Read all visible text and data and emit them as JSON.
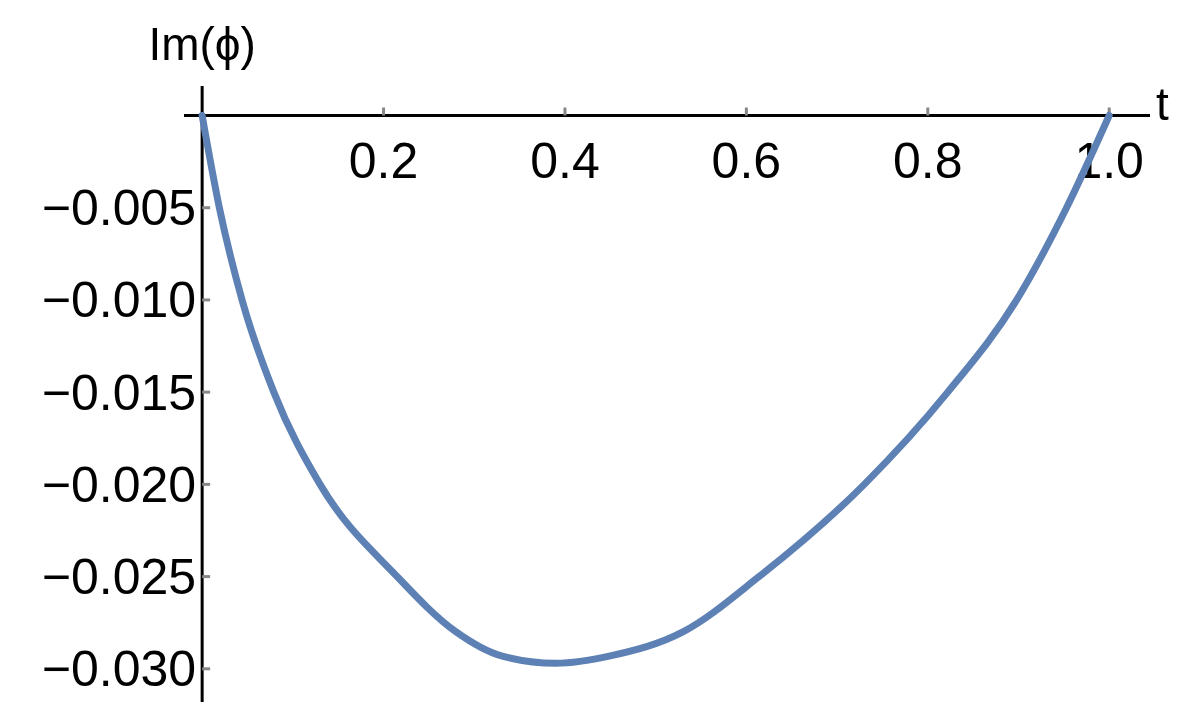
{
  "chart_data": {
    "type": "line",
    "xlabel": "t",
    "ylabel": "Im(ϕ)",
    "xlim": [
      -0.02,
      1.045
    ],
    "ylim": [
      -0.0318,
      0.0016
    ],
    "xticks": [
      0.2,
      0.4,
      0.6,
      0.8,
      {
        "value": 1.0,
        "label": "1.0"
      }
    ],
    "yticks": [
      {
        "value": -0.005,
        "label": "−0.005"
      },
      {
        "value": -0.01,
        "label": "−0.010"
      },
      {
        "value": -0.015,
        "label": "−0.015"
      },
      {
        "value": -0.02,
        "label": "−0.020"
      },
      {
        "value": -0.025,
        "label": "−0.025"
      },
      {
        "value": -0.03,
        "label": "−0.030"
      }
    ],
    "grid": false,
    "series": [
      {
        "color": "#5e81b5",
        "x": [
          0,
          0.019,
          0.044,
          0.079,
          0.13,
          0.215,
          0.28,
          0.33,
          0.39,
          0.45,
          0.53,
          0.614,
          0.73,
          0.822,
          0.898,
          0.953,
          1.0
        ],
        "values": [
          0,
          -0.005,
          -0.01,
          -0.015,
          -0.02,
          -0.025,
          -0.028,
          -0.0293,
          -0.0297,
          -0.0293,
          -0.028,
          -0.025,
          -0.02,
          -0.015,
          -0.01,
          -0.005,
          0
        ]
      }
    ]
  }
}
